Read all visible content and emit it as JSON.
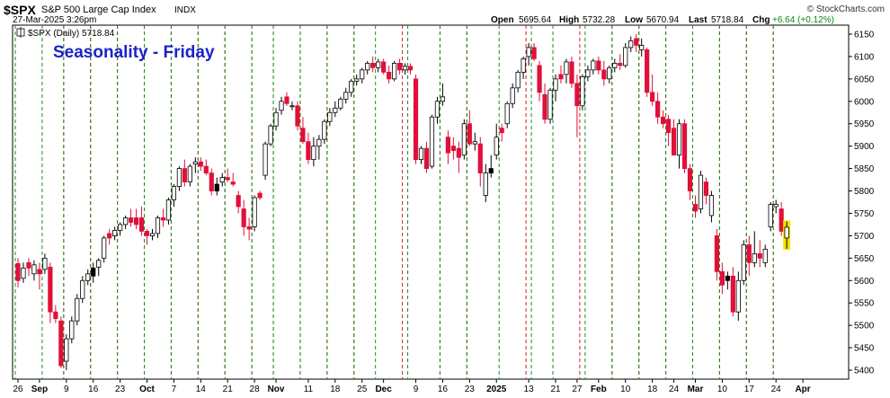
{
  "header": {
    "symbol": "$SPX",
    "name": "S&P 500 Large Cap Index",
    "exchange": "INDX",
    "timestamp": "27-Mar-2025 3:26pm",
    "open_label": "Open",
    "open": "5695.64",
    "high_label": "High",
    "high": "5732.28",
    "low_label": "Low",
    "low": "5670.94",
    "last_label": "Last",
    "last": "5718.84",
    "chg_label": "Chg",
    "chg": "+6.64 (+0.12%)",
    "credit": "© StockCharts.com"
  },
  "legend": {
    "text": "$SPX (Daily) 5718.84"
  },
  "overlay": {
    "title": "Seasonality - Friday"
  },
  "colors": {
    "up_candle": "#ffffff",
    "down_candle": "#e0103a",
    "black_candle": "#000000",
    "friday_line": "#d21f1f",
    "monday_line": "#1c8f1c",
    "overlay_title": "#1a24c8",
    "highlight": "#f2e600"
  },
  "chart_data": {
    "type": "candlestick",
    "title": "Seasonality - Friday",
    "ylim": [
      5380,
      6170
    ],
    "y_ticks": [
      5400,
      5450,
      5500,
      5550,
      5600,
      5650,
      5700,
      5750,
      5800,
      5850,
      5900,
      5950,
      6000,
      6050,
      6100,
      6150
    ],
    "x_tick_labels": [
      "26",
      "Sep",
      "9",
      "16",
      "23",
      "Oct",
      "7",
      "14",
      "21",
      "28",
      "Nov",
      "11",
      "18",
      "25",
      "Dec",
      "9",
      "16",
      "23",
      "2025",
      "13",
      "21",
      "27",
      "Feb",
      "10",
      "18",
      "24",
      "Mar",
      "10",
      "17",
      "24",
      "Apr"
    ],
    "x_tick_positions": [
      0,
      4,
      9,
      14,
      19,
      24,
      29,
      34,
      39,
      44,
      48,
      54,
      59,
      64,
      68,
      74,
      79,
      84,
      89,
      95,
      100,
      104,
      108,
      113,
      118,
      122,
      126,
      131,
      136,
      141,
      146
    ],
    "friday_line_positions": [
      -1,
      8,
      13,
      18,
      23,
      28,
      33,
      38,
      43,
      47,
      52,
      57,
      62,
      71,
      78,
      83,
      94,
      99,
      104,
      110,
      115,
      120,
      125,
      130,
      135,
      140
    ],
    "monday_line_positions": [
      0,
      5,
      9,
      14,
      19,
      24,
      29,
      34,
      39,
      44,
      48,
      53,
      58,
      63,
      67,
      73,
      79,
      84,
      90,
      96,
      100,
      106,
      111,
      116,
      121,
      126,
      131,
      136,
      141
    ],
    "candles": [
      [
        5638,
        5650,
        5585,
        5600,
        "R"
      ],
      [
        5605,
        5640,
        5595,
        5628,
        "W"
      ],
      [
        5628,
        5650,
        5610,
        5640,
        "R"
      ],
      [
        5635,
        5645,
        5600,
        5615,
        "W"
      ],
      [
        5615,
        5640,
        5580,
        5625,
        "R"
      ],
      [
        5625,
        5660,
        5615,
        5650,
        "W"
      ],
      [
        5630,
        5640,
        5505,
        5530,
        "R"
      ],
      [
        5530,
        5545,
        5505,
        5515,
        "R"
      ],
      [
        5510,
        5520,
        5405,
        5410,
        "R"
      ],
      [
        5420,
        5480,
        5400,
        5470,
        "W"
      ],
      [
        5470,
        5520,
        5460,
        5510,
        "W"
      ],
      [
        5510,
        5570,
        5500,
        5560,
        "W"
      ],
      [
        5560,
        5610,
        5550,
        5600,
        "W"
      ],
      [
        5600,
        5625,
        5590,
        5615,
        "W"
      ],
      [
        5610,
        5640,
        5595,
        5628,
        "B"
      ],
      [
        5630,
        5650,
        5610,
        5645,
        "W"
      ],
      [
        5650,
        5700,
        5640,
        5695,
        "W"
      ],
      [
        5695,
        5715,
        5680,
        5705,
        "R"
      ],
      [
        5700,
        5720,
        5690,
        5712,
        "W"
      ],
      [
        5712,
        5730,
        5700,
        5725,
        "W"
      ],
      [
        5725,
        5745,
        5715,
        5740,
        "W"
      ],
      [
        5740,
        5760,
        5720,
        5730,
        "R"
      ],
      [
        5740,
        5760,
        5715,
        5725,
        "R"
      ],
      [
        5740,
        5765,
        5700,
        5710,
        "R"
      ],
      [
        5710,
        5715,
        5680,
        5700,
        "R"
      ],
      [
        5700,
        5715,
        5690,
        5705,
        "W"
      ],
      [
        5705,
        5745,
        5695,
        5740,
        "W"
      ],
      [
        5740,
        5760,
        5720,
        5735,
        "R"
      ],
      [
        5735,
        5785,
        5725,
        5780,
        "W"
      ],
      [
        5780,
        5815,
        5765,
        5810,
        "W"
      ],
      [
        5810,
        5855,
        5800,
        5850,
        "W"
      ],
      [
        5850,
        5870,
        5810,
        5820,
        "R"
      ],
      [
        5820,
        5860,
        5810,
        5855,
        "W"
      ],
      [
        5860,
        5875,
        5840,
        5865,
        "W"
      ],
      [
        5865,
        5875,
        5845,
        5855,
        "R"
      ],
      [
        5855,
        5870,
        5835,
        5840,
        "R"
      ],
      [
        5840,
        5850,
        5790,
        5800,
        "R"
      ],
      [
        5800,
        5830,
        5790,
        5815,
        "B"
      ],
      [
        5820,
        5840,
        5810,
        5830,
        "W"
      ],
      [
        5830,
        5850,
        5820,
        5825,
        "R"
      ],
      [
        5820,
        5840,
        5810,
        5815,
        "R"
      ],
      [
        5790,
        5800,
        5750,
        5765,
        "R"
      ],
      [
        5760,
        5780,
        5700,
        5720,
        "R"
      ],
      [
        5720,
        5740,
        5690,
        5715,
        "R"
      ],
      [
        5720,
        5790,
        5710,
        5785,
        "W"
      ],
      [
        5795,
        5800,
        5780,
        5785,
        "R"
      ],
      [
        5835,
        5910,
        5825,
        5905,
        "W"
      ],
      [
        5905,
        5950,
        5900,
        5945,
        "W"
      ],
      [
        5945,
        5985,
        5935,
        5975,
        "W"
      ],
      [
        5980,
        6010,
        5970,
        6000,
        "W"
      ],
      [
        6010,
        6020,
        5990,
        5995,
        "R"
      ],
      [
        5990,
        6000,
        5980,
        5990,
        "W"
      ],
      [
        5990,
        6000,
        5935,
        5945,
        "R"
      ],
      [
        5940,
        5965,
        5905,
        5910,
        "R"
      ],
      [
        5910,
        5930,
        5860,
        5870,
        "R"
      ],
      [
        5870,
        5920,
        5855,
        5900,
        "W"
      ],
      [
        5900,
        5925,
        5870,
        5915,
        "W"
      ],
      [
        5915,
        5960,
        5905,
        5955,
        "W"
      ],
      [
        5955,
        5985,
        5945,
        5975,
        "W"
      ],
      [
        5975,
        6000,
        5965,
        5985,
        "W"
      ],
      [
        5985,
        6010,
        5980,
        6005,
        "W"
      ],
      [
        6005,
        6030,
        5995,
        6020,
        "W"
      ],
      [
        6020,
        6050,
        6010,
        6045,
        "W"
      ],
      [
        6045,
        6060,
        6035,
        6050,
        "W"
      ],
      [
        6050,
        6075,
        6040,
        6070,
        "W"
      ],
      [
        6070,
        6090,
        6060,
        6085,
        "W"
      ],
      [
        6085,
        6100,
        6065,
        6075,
        "R"
      ],
      [
        6075,
        6095,
        6065,
        6088,
        "W"
      ],
      [
        6088,
        6095,
        6060,
        6065,
        "R"
      ],
      [
        6065,
        6080,
        6040,
        6050,
        "R"
      ],
      [
        6050,
        6090,
        6045,
        6085,
        "W"
      ],
      [
        6085,
        6095,
        6060,
        6070,
        "R"
      ],
      [
        6070,
        6085,
        6060,
        6078,
        "W"
      ],
      [
        6078,
        6085,
        6060,
        6070,
        "R"
      ],
      [
        6050,
        6060,
        5860,
        5870,
        "R"
      ],
      [
        5870,
        5900,
        5860,
        5895,
        "W"
      ],
      [
        5895,
        5910,
        5840,
        5850,
        "R"
      ],
      [
        5855,
        5970,
        5850,
        5965,
        "W"
      ],
      [
        5965,
        6010,
        5950,
        6000,
        "W"
      ],
      [
        6000,
        6040,
        5990,
        6010,
        "W"
      ],
      [
        5920,
        5935,
        5860,
        5885,
        "R"
      ],
      [
        5890,
        5920,
        5870,
        5900,
        "R"
      ],
      [
        5895,
        5910,
        5840,
        5875,
        "R"
      ],
      [
        5880,
        5960,
        5870,
        5950,
        "W"
      ],
      [
        5950,
        5980,
        5900,
        5905,
        "R"
      ],
      [
        5905,
        5930,
        5890,
        5910,
        "W"
      ],
      [
        5905,
        5920,
        5810,
        5840,
        "R"
      ],
      [
        5840,
        5860,
        5775,
        5790,
        "W"
      ],
      [
        5840,
        5880,
        5830,
        5850,
        "B"
      ],
      [
        5880,
        5950,
        5870,
        5920,
        "W"
      ],
      [
        5930,
        5950,
        5910,
        5940,
        "R"
      ],
      [
        5950,
        6000,
        5940,
        5995,
        "W"
      ],
      [
        5995,
        6040,
        5985,
        6030,
        "W"
      ],
      [
        6030,
        6070,
        6020,
        6065,
        "W"
      ],
      [
        6065,
        6100,
        6050,
        6095,
        "W"
      ],
      [
        6100,
        6130,
        6080,
        6120,
        "W"
      ],
      [
        6120,
        6130,
        6090,
        6095,
        "R"
      ],
      [
        6080,
        6090,
        6000,
        6020,
        "R"
      ],
      [
        6015,
        6040,
        5950,
        5960,
        "R"
      ],
      [
        5960,
        6030,
        5950,
        6025,
        "W"
      ],
      [
        6025,
        6060,
        6000,
        6050,
        "W"
      ],
      [
        6050,
        6080,
        6040,
        6060,
        "R"
      ],
      [
        6060,
        6095,
        6040,
        6088,
        "W"
      ],
      [
        6088,
        6100,
        6030,
        6040,
        "R"
      ],
      [
        6040,
        6060,
        5920,
        5990,
        "R"
      ],
      [
        5990,
        6060,
        5980,
        6055,
        "W"
      ],
      [
        6055,
        6080,
        6045,
        6070,
        "W"
      ],
      [
        6070,
        6095,
        6060,
        6090,
        "W"
      ],
      [
        6090,
        6100,
        6060,
        6070,
        "R"
      ],
      [
        6070,
        6090,
        6035,
        6050,
        "R"
      ],
      [
        6050,
        6080,
        6040,
        6075,
        "W"
      ],
      [
        6075,
        6095,
        6065,
        6085,
        "W"
      ],
      [
        6085,
        6105,
        6070,
        6080,
        "R"
      ],
      [
        6080,
        6130,
        6075,
        6120,
        "W"
      ],
      [
        6120,
        6145,
        6110,
        6135,
        "W"
      ],
      [
        6140,
        6150,
        6110,
        6125,
        "R"
      ],
      [
        6125,
        6140,
        6100,
        6115,
        "W"
      ],
      [
        6115,
        6120,
        6010,
        6020,
        "R"
      ],
      [
        6020,
        6060,
        5990,
        6000,
        "R"
      ],
      [
        6000,
        6020,
        5950,
        5965,
        "R"
      ],
      [
        5965,
        5980,
        5940,
        5950,
        "R"
      ],
      [
        5960,
        5970,
        5900,
        5930,
        "R"
      ],
      [
        5940,
        5960,
        5880,
        5880,
        "R"
      ],
      [
        5880,
        5960,
        5850,
        5950,
        "W"
      ],
      [
        5950,
        5960,
        5840,
        5850,
        "R"
      ],
      [
        5850,
        5860,
        5780,
        5800,
        "R"
      ],
      [
        5770,
        5790,
        5740,
        5755,
        "R"
      ],
      [
        5760,
        5845,
        5750,
        5835,
        "W"
      ],
      [
        5820,
        5830,
        5770,
        5790,
        "R"
      ],
      [
        5790,
        5800,
        5730,
        5745,
        "W"
      ],
      [
        5700,
        5715,
        5600,
        5620,
        "R"
      ],
      [
        5620,
        5640,
        5570,
        5590,
        "R"
      ],
      [
        5600,
        5620,
        5580,
        5610,
        "B"
      ],
      [
        5610,
        5630,
        5520,
        5530,
        "R"
      ],
      [
        5530,
        5620,
        5510,
        5600,
        "W"
      ],
      [
        5600,
        5690,
        5590,
        5680,
        "W"
      ],
      [
        5680,
        5700,
        5610,
        5640,
        "R"
      ],
      [
        5640,
        5710,
        5630,
        5660,
        "W"
      ],
      [
        5660,
        5690,
        5630,
        5650,
        "R"
      ],
      [
        5640,
        5680,
        5630,
        5670,
        "W"
      ],
      [
        5720,
        5775,
        5710,
        5770,
        "W"
      ],
      [
        5770,
        5780,
        5750,
        5765,
        "W"
      ],
      [
        5760,
        5775,
        5700,
        5710,
        "R"
      ],
      [
        5695,
        5732,
        5671,
        5719,
        "Y"
      ]
    ]
  }
}
